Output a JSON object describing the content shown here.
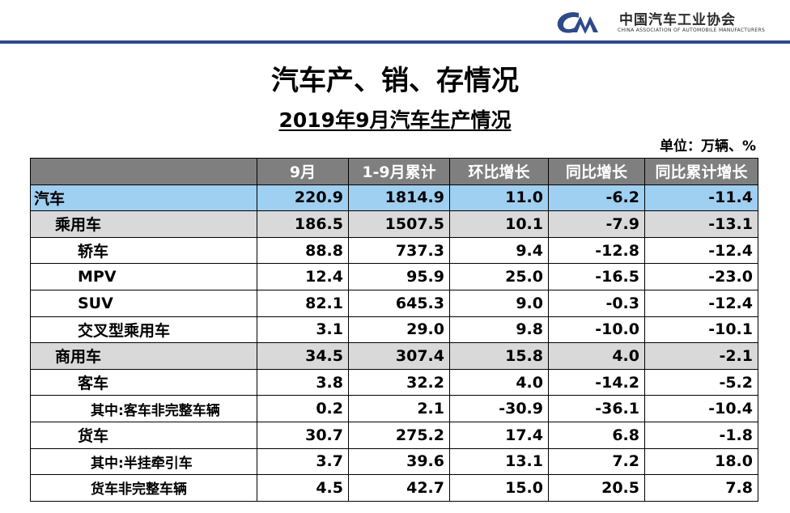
{
  "header": {
    "org_name_cn": "中国汽车工业协会",
    "org_name_en": "CHINA ASSOCIATION OF AUTOMOBILE MANUFACTURERS",
    "brand_color": "#2d4a8a"
  },
  "title": "汽车产、销、存情况",
  "subtitle": "2019年9月汽车生产情况",
  "unit": "单位：万辆、%",
  "table": {
    "columns": [
      "",
      "9月",
      "1-9月累计",
      "环比增长",
      "同比增长",
      "同比累计增长"
    ],
    "rows": [
      {
        "level": 0,
        "label": "汽车",
        "values": [
          "220.9",
          "1814.9",
          "11.0",
          "-6.2",
          "-11.4"
        ]
      },
      {
        "level": 1,
        "label": "乘用车",
        "values": [
          "186.5",
          "1507.5",
          "10.1",
          "-7.9",
          "-13.1"
        ]
      },
      {
        "level": 2,
        "label": "轿车",
        "values": [
          "88.8",
          "737.3",
          "9.4",
          "-12.8",
          "-12.4"
        ]
      },
      {
        "level": 2,
        "label": "MPV",
        "values": [
          "12.4",
          "95.9",
          "25.0",
          "-16.5",
          "-23.0"
        ]
      },
      {
        "level": 2,
        "label": "SUV",
        "values": [
          "82.1",
          "645.3",
          "9.0",
          "-0.3",
          "-12.4"
        ]
      },
      {
        "level": 2,
        "label": "交叉型乘用车",
        "values": [
          "3.1",
          "29.0",
          "9.8",
          "-10.0",
          "-10.1"
        ]
      },
      {
        "level": 1,
        "label": "商用车",
        "values": [
          "34.5",
          "307.4",
          "15.8",
          "4.0",
          "-2.1"
        ]
      },
      {
        "level": 2,
        "label": "客车",
        "values": [
          "3.8",
          "32.2",
          "4.0",
          "-14.2",
          "-5.2"
        ]
      },
      {
        "level": 3,
        "label": "其中:客车非完整车辆",
        "values": [
          "0.2",
          "2.1",
          "-30.9",
          "-36.1",
          "-10.4"
        ]
      },
      {
        "level": 2,
        "label": "货车",
        "values": [
          "30.7",
          "275.2",
          "17.4",
          "6.8",
          "-1.8"
        ]
      },
      {
        "level": 3,
        "label": "其中:半挂牵引车",
        "values": [
          "3.7",
          "39.6",
          "13.1",
          "7.2",
          "18.0"
        ]
      },
      {
        "level": 3,
        "label": "货车非完整车辆",
        "values": [
          "4.5",
          "42.7",
          "15.0",
          "20.5",
          "7.8"
        ]
      }
    ]
  }
}
